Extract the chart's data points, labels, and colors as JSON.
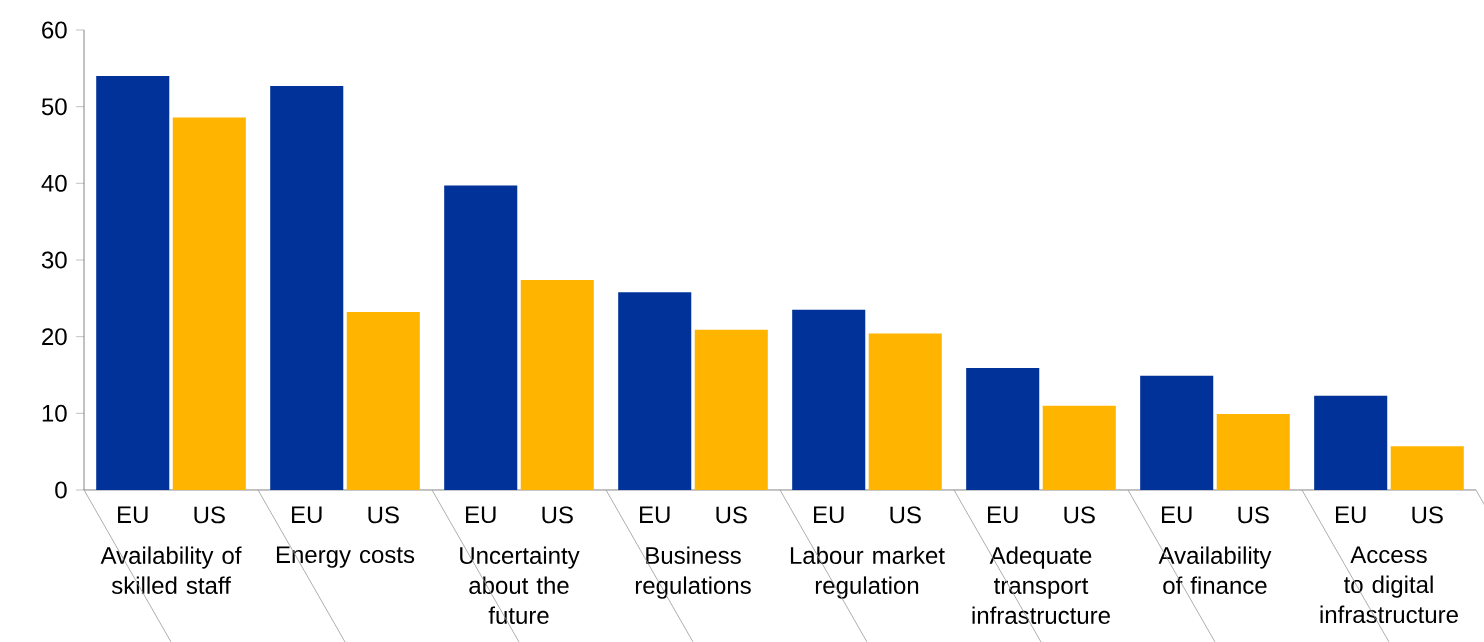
{
  "chart_data": {
    "type": "bar",
    "categories": [
      "Availability of skilled staff",
      "Energy costs",
      "Uncertainty about the future",
      "Business regulations",
      "Labour market regulation",
      "Adequate transport infrastructure",
      "Availability of finance",
      "Access to digital infrastructure"
    ],
    "series": [
      {
        "name": "EU",
        "color": "#003299",
        "values": [
          54.0,
          52.7,
          39.7,
          25.8,
          23.5,
          15.9,
          14.9,
          12.3
        ]
      },
      {
        "name": "US",
        "color": "#ffb400",
        "values": [
          48.6,
          23.2,
          27.4,
          20.9,
          20.4,
          11.0,
          9.9,
          5.7
        ]
      }
    ],
    "ylim": [
      0,
      60
    ],
    "yticks": [
      0,
      10,
      20,
      30,
      40,
      50,
      60
    ],
    "legend": false,
    "grid": false
  }
}
